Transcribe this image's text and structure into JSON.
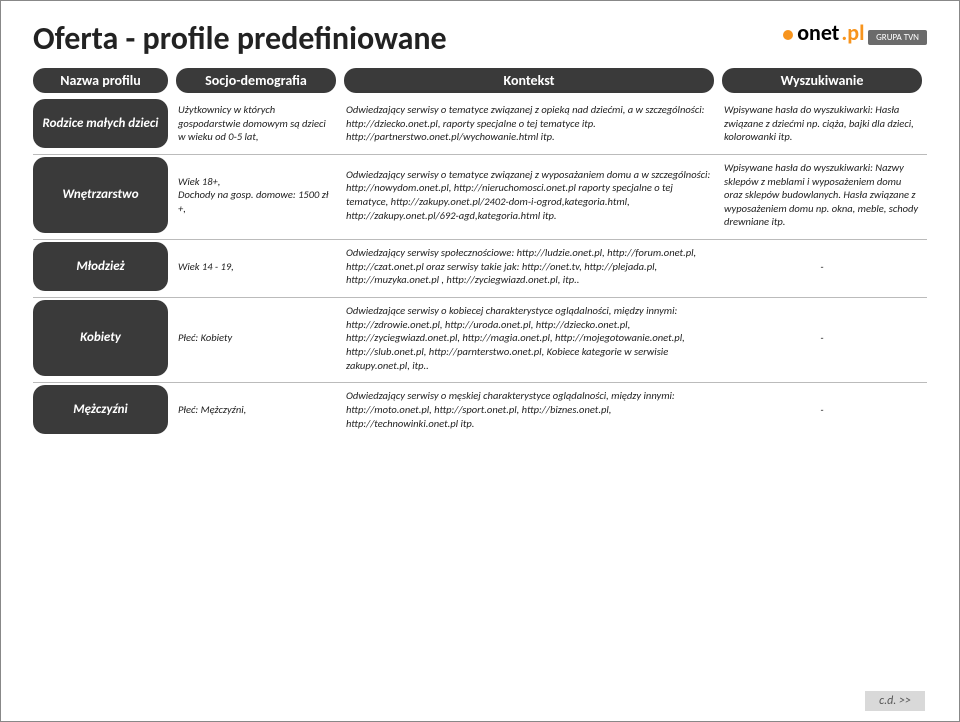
{
  "slide": {
    "title": "Oferta - profile predefiniowane",
    "logo": {
      "brand": "onet",
      "suffix": "pl",
      "sub": "GRUPA TVN"
    },
    "footer_next": "c.d. >>",
    "colors": {
      "pill_bg": "#3a3a3a",
      "accent": "#f7941d",
      "divider": "#bbbbbb"
    }
  },
  "columns": {
    "profile": "Nazwa profilu",
    "socio": "Socjo-demografia",
    "context": "Kontekst",
    "search": "Wyszukiwanie"
  },
  "rows": [
    {
      "label": "Rodzice małych dzieci",
      "socio": "Użytkownicy w których gospodarstwie domowym są dzieci w wieku od 0-5 lat,",
      "context": "Odwiedzający serwisy o tematyce związanej z opieką nad dziećmi, a w szczególności: http://dziecko.onet.pl, raporty specjalne o tej tematyce itp. http://partnerstwo.onet.pl/wychowanie.html itp.",
      "search": "Wpisywane hasła do wyszukiwarki: Hasła związane z dziećmi np. ciąża, bajki dla dzieci, kolorowanki itp."
    },
    {
      "label": "Wnętrzarstwo",
      "socio": "Wiek 18+,\nDochody na gosp. domowe: 1500 zł +,",
      "context": "Odwiedzający serwisy o tematyce związanej z wyposażaniem domu a w szczególności: http://nowydom.onet.pl, http://nieruchomosci.onet.pl raporty specjalne o tej tematyce, http://zakupy.onet.pl/2402-dom-i-ogrod,kategoria.html, http://zakupy.onet.pl/692-agd,kategoria.html itp.",
      "search": "Wpisywane hasła do wyszukiwarki: Nazwy sklepów z meblami i wyposażeniem domu oraz sklepów budowlanych. Hasła związane z wyposażeniem domu np. okna, meble, schody drewniane itp."
    },
    {
      "label": "Młodzież",
      "socio": "Wiek 14 - 19,",
      "context": "Odwiedzający serwisy społecznościowe: http://ludzie.onet.pl, http://forum.onet.pl, http://czat.onet.pl oraz serwisy takie jak: http://onet.tv, http://plejada.pl, http://muzyka.onet.pl , http://zyciegwiazd.onet.pl, itp..",
      "search": "-"
    },
    {
      "label": "Kobiety",
      "socio": "Płeć: Kobiety",
      "context": "Odwiedzające serwisy o kobiecej charakterystyce oglądalności, między innymi: http://zdrowie.onet.pl, http://uroda.onet.pl, http://dziecko.onet.pl, http://zyciegwiazd.onet.pl, http://magia.onet.pl, http://mojegotowanie.onet.pl, http://slub.onet.pl, http://parnterstwo.onet.pl, Kobiece kategorie w serwisie zakupy.onet.pl, itp..",
      "search": "-"
    },
    {
      "label": "Mężczyźni",
      "socio": "Płeć: Mężczyźni,",
      "context": "Odwiedzający serwisy o męskiej charakterystyce oglądalności, między innymi: http://moto.onet.pl, http://sport.onet.pl, http://biznes.onet.pl, http://technowinki.onet.pl itp.",
      "search": "-"
    }
  ]
}
